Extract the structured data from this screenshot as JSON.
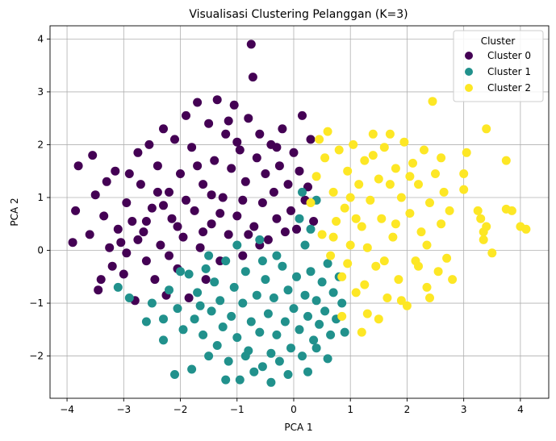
{
  "chart_data": {
    "type": "scatter",
    "title": "Visualisasi Clustering Pelanggan (K=3)",
    "xlabel": "PCA 1",
    "ylabel": "PCA 2",
    "xlim": [
      -4.3,
      4.5
    ],
    "ylim": [
      -2.8,
      4.25
    ],
    "xticks": [
      -4,
      -3,
      -2,
      -1,
      0,
      1,
      2,
      3,
      4
    ],
    "yticks": [
      -2,
      -1,
      0,
      1,
      2,
      3,
      4
    ],
    "grid": true,
    "legend": {
      "title": "Cluster",
      "placement": "top-right"
    },
    "series": [
      {
        "name": "Cluster 0",
        "color": "#440154",
        "points": [
          [
            -3.9,
            0.15
          ],
          [
            -3.85,
            0.75
          ],
          [
            -3.8,
            1.6
          ],
          [
            -3.6,
            0.3
          ],
          [
            -3.55,
            1.8
          ],
          [
            -3.5,
            1.05
          ],
          [
            -3.45,
            -0.75
          ],
          [
            -3.4,
            -0.55
          ],
          [
            -3.35,
            0.65
          ],
          [
            -3.3,
            1.3
          ],
          [
            -3.25,
            0.05
          ],
          [
            -3.2,
            -0.3
          ],
          [
            -3.15,
            1.5
          ],
          [
            -3.1,
            0.4
          ],
          [
            -3.05,
            0.15
          ],
          [
            -3.0,
            -0.45
          ],
          [
            -2.95,
            0.9
          ],
          [
            -2.9,
            1.45
          ],
          [
            -2.85,
            0.55
          ],
          [
            -2.8,
            -0.95
          ],
          [
            -2.75,
            1.85
          ],
          [
            -2.7,
            1.25
          ],
          [
            -2.65,
            0.35
          ],
          [
            -2.6,
            -0.2
          ],
          [
            -2.55,
            2.0
          ],
          [
            -2.5,
            0.8
          ],
          [
            -2.45,
            -0.55
          ],
          [
            -2.4,
            1.6
          ],
          [
            -2.35,
            0.1
          ],
          [
            -2.3,
            2.3
          ],
          [
            -2.25,
            -0.85
          ],
          [
            -2.2,
            1.1
          ],
          [
            -2.15,
            0.6
          ],
          [
            -2.1,
            2.1
          ],
          [
            -2.05,
            -0.35
          ],
          [
            -2.0,
            1.45
          ],
          [
            -1.95,
            0.25
          ],
          [
            -1.9,
            2.55
          ],
          [
            -1.85,
            -0.9
          ],
          [
            -1.8,
            1.95
          ],
          [
            -1.75,
            0.75
          ],
          [
            -1.7,
            2.8
          ],
          [
            -1.65,
            0.05
          ],
          [
            -1.6,
            1.25
          ],
          [
            -1.55,
            -0.55
          ],
          [
            -1.5,
            2.4
          ],
          [
            -1.45,
            0.5
          ],
          [
            -1.4,
            1.7
          ],
          [
            -1.35,
            2.85
          ],
          [
            -1.3,
            -0.2
          ],
          [
            -1.25,
            1.0
          ],
          [
            -1.2,
            2.2
          ],
          [
            -1.15,
            0.3
          ],
          [
            -1.1,
            1.55
          ],
          [
            -1.05,
            2.75
          ],
          [
            -1.0,
            0.65
          ],
          [
            -0.95,
            1.9
          ],
          [
            -0.9,
            -0.1
          ],
          [
            -0.85,
            1.3
          ],
          [
            -0.8,
            2.5
          ],
          [
            -0.75,
            3.9
          ],
          [
            -0.72,
            3.28
          ],
          [
            -0.7,
            0.45
          ],
          [
            -0.65,
            1.75
          ],
          [
            -0.6,
            2.2
          ],
          [
            -0.55,
            0.9
          ],
          [
            -0.5,
            1.45
          ],
          [
            -0.45,
            0.2
          ],
          [
            -0.4,
            2.0
          ],
          [
            -0.35,
            1.1
          ],
          [
            -0.3,
            0.6
          ],
          [
            -0.25,
            1.6
          ],
          [
            -0.2,
            2.3
          ],
          [
            -0.15,
            0.35
          ],
          [
            -0.1,
            1.25
          ],
          [
            -0.05,
            0.75
          ],
          [
            0.0,
            1.85
          ],
          [
            0.05,
            0.4
          ],
          [
            0.1,
            1.5
          ],
          [
            0.15,
            2.55
          ],
          [
            0.2,
            0.95
          ],
          [
            0.25,
            1.2
          ],
          [
            0.3,
            2.1
          ],
          [
            0.35,
            0.55
          ],
          [
            -2.95,
            -0.05
          ],
          [
            -2.6,
            0.55
          ],
          [
            -2.2,
            -0.1
          ],
          [
            -1.9,
            0.95
          ],
          [
            -1.6,
            0.35
          ],
          [
            -1.3,
            0.7
          ],
          [
            -0.9,
            0.95
          ],
          [
            -0.6,
            0.1
          ],
          [
            -2.4,
            1.1
          ],
          [
            -1.7,
            1.6
          ],
          [
            -1.0,
            2.05
          ],
          [
            -0.3,
            1.95
          ],
          [
            -2.75,
            0.2
          ],
          [
            -2.05,
            0.45
          ],
          [
            -1.45,
            1.05
          ],
          [
            -0.8,
            0.3
          ],
          [
            -2.3,
            0.85
          ],
          [
            -1.15,
            2.45
          ]
        ]
      },
      {
        "name": "Cluster 1",
        "color": "#21918c",
        "points": [
          [
            -3.1,
            -0.7
          ],
          [
            -2.9,
            -0.9
          ],
          [
            -2.6,
            -1.35
          ],
          [
            -2.5,
            -1.0
          ],
          [
            -2.3,
            -1.7
          ],
          [
            -2.2,
            -0.75
          ],
          [
            -2.1,
            -2.35
          ],
          [
            -2.05,
            -1.1
          ],
          [
            -1.95,
            -1.5
          ],
          [
            -1.85,
            -0.45
          ],
          [
            -1.8,
            -2.25
          ],
          [
            -1.75,
            -1.3
          ],
          [
            -1.7,
            -0.8
          ],
          [
            -1.6,
            -1.6
          ],
          [
            -1.55,
            -0.35
          ],
          [
            -1.5,
            -2.0
          ],
          [
            -1.45,
            -1.15
          ],
          [
            -1.4,
            -0.6
          ],
          [
            -1.35,
            -1.8
          ],
          [
            -1.3,
            -0.95
          ],
          [
            -1.25,
            -1.45
          ],
          [
            -1.2,
            -0.2
          ],
          [
            -1.15,
            -2.1
          ],
          [
            -1.1,
            -1.25
          ],
          [
            -1.05,
            -0.7
          ],
          [
            -1.0,
            -1.65
          ],
          [
            -0.95,
            -2.45
          ],
          [
            -0.9,
            -1.0
          ],
          [
            -0.85,
            -0.4
          ],
          [
            -0.8,
            -1.9
          ],
          [
            -0.75,
            -1.35
          ],
          [
            -0.7,
            -2.3
          ],
          [
            -0.65,
            -0.85
          ],
          [
            -0.6,
            -1.55
          ],
          [
            -0.55,
            -2.2
          ],
          [
            -0.5,
            -0.55
          ],
          [
            -0.45,
            -1.2
          ],
          [
            -0.4,
            -1.95
          ],
          [
            -0.35,
            -0.9
          ],
          [
            -0.3,
            -1.6
          ],
          [
            -0.25,
            -2.1
          ],
          [
            -0.2,
            -0.3
          ],
          [
            -0.15,
            -1.35
          ],
          [
            -0.1,
            -0.75
          ],
          [
            -0.05,
            -1.85
          ],
          [
            0.0,
            -1.1
          ],
          [
            0.05,
            -0.5
          ],
          [
            0.1,
            -1.5
          ],
          [
            0.15,
            -2.0
          ],
          [
            0.2,
            -0.85
          ],
          [
            0.25,
            -1.25
          ],
          [
            0.3,
            -0.4
          ],
          [
            0.35,
            -1.7
          ],
          [
            0.4,
            -0.95
          ],
          [
            0.45,
            -1.4
          ],
          [
            0.5,
            -0.6
          ],
          [
            0.55,
            -1.15
          ],
          [
            0.6,
            -0.25
          ],
          [
            0.65,
            -1.6
          ],
          [
            0.7,
            -0.8
          ],
          [
            0.75,
            -1.3
          ],
          [
            0.8,
            -0.5
          ],
          [
            0.85,
            -1.0
          ],
          [
            0.9,
            -1.55
          ],
          [
            0.3,
            0.4
          ],
          [
            0.2,
            0.1
          ],
          [
            0.1,
            0.6
          ],
          [
            0.4,
            0.95
          ],
          [
            0.15,
            1.1
          ],
          [
            -0.3,
            -0.1
          ],
          [
            -0.6,
            0.2
          ],
          [
            -1.0,
            0.1
          ],
          [
            -1.5,
            -0.1
          ],
          [
            -2.0,
            -0.4
          ],
          [
            -1.2,
            -2.45
          ],
          [
            -0.4,
            -2.5
          ],
          [
            0.25,
            -2.3
          ],
          [
            0.6,
            -2.05
          ],
          [
            -0.85,
            -2.0
          ],
          [
            -0.1,
            -2.35
          ],
          [
            0.4,
            -1.85
          ],
          [
            -1.65,
            -1.05
          ],
          [
            -2.3,
            -1.3
          ],
          [
            -0.55,
            -0.2
          ]
        ]
      },
      {
        "name": "Cluster 2",
        "color": "#fde725",
        "points": [
          [
            0.3,
            0.9
          ],
          [
            0.4,
            1.4
          ],
          [
            0.45,
            2.1
          ],
          [
            0.5,
            0.3
          ],
          [
            0.55,
            1.75
          ],
          [
            0.6,
            2.25
          ],
          [
            0.65,
            -0.1
          ],
          [
            0.7,
            1.1
          ],
          [
            0.75,
            0.55
          ],
          [
            0.8,
            1.9
          ],
          [
            0.85,
            -0.5
          ],
          [
            0.9,
            0.8
          ],
          [
            0.95,
            1.5
          ],
          [
            1.0,
            0.1
          ],
          [
            1.05,
            2.0
          ],
          [
            1.1,
            -0.8
          ],
          [
            1.15,
            1.25
          ],
          [
            1.2,
            0.45
          ],
          [
            1.25,
            1.7
          ],
          [
            1.3,
            -1.2
          ],
          [
            1.35,
            0.95
          ],
          [
            1.4,
            2.2
          ],
          [
            1.45,
            -0.3
          ],
          [
            1.5,
            1.35
          ],
          [
            1.55,
            0.6
          ],
          [
            1.6,
            1.95
          ],
          [
            1.65,
            -0.9
          ],
          [
            1.7,
            2.2
          ],
          [
            1.75,
            0.25
          ],
          [
            1.8,
            1.55
          ],
          [
            1.85,
            -0.55
          ],
          [
            1.9,
            1.0
          ],
          [
            1.95,
            2.05
          ],
          [
            2.0,
            -1.05
          ],
          [
            2.05,
            0.7
          ],
          [
            2.1,
            1.65
          ],
          [
            2.15,
            -0.2
          ],
          [
            2.2,
            1.25
          ],
          [
            2.25,
            0.35
          ],
          [
            2.3,
            1.9
          ],
          [
            2.35,
            -0.7
          ],
          [
            2.4,
            0.9
          ],
          [
            2.45,
            2.82
          ],
          [
            2.5,
            1.45
          ],
          [
            2.55,
            -0.4
          ],
          [
            2.6,
            0.5
          ],
          [
            2.65,
            1.1
          ],
          [
            2.7,
            -0.15
          ],
          [
            2.75,
            0.75
          ],
          [
            2.8,
            -0.55
          ],
          [
            3.0,
            1.45
          ],
          [
            3.05,
            1.85
          ],
          [
            3.0,
            1.15
          ],
          [
            3.3,
            0.6
          ],
          [
            3.35,
            0.35
          ],
          [
            3.35,
            0.2
          ],
          [
            3.4,
            0.45
          ],
          [
            3.25,
            0.75
          ],
          [
            3.4,
            2.3
          ],
          [
            3.75,
            1.7
          ],
          [
            3.75,
            0.78
          ],
          [
            3.85,
            0.75
          ],
          [
            4.0,
            0.45
          ],
          [
            4.1,
            0.4
          ],
          [
            3.5,
            -0.05
          ],
          [
            1.2,
            -1.55
          ],
          [
            0.85,
            -1.25
          ],
          [
            1.5,
            -1.3
          ],
          [
            1.0,
            1.0
          ],
          [
            1.3,
            0.05
          ],
          [
            1.8,
            0.5
          ],
          [
            2.2,
            -0.3
          ],
          [
            2.05,
            1.4
          ],
          [
            1.7,
            1.25
          ],
          [
            1.4,
            1.8
          ],
          [
            1.1,
            0.6
          ],
          [
            0.95,
            -0.25
          ],
          [
            2.4,
            -0.9
          ],
          [
            2.6,
            1.75
          ],
          [
            1.6,
            -0.2
          ],
          [
            0.7,
            0.25
          ],
          [
            1.9,
            -0.95
          ],
          [
            2.35,
            0.1
          ],
          [
            1.25,
            -0.65
          ]
        ]
      }
    ]
  }
}
